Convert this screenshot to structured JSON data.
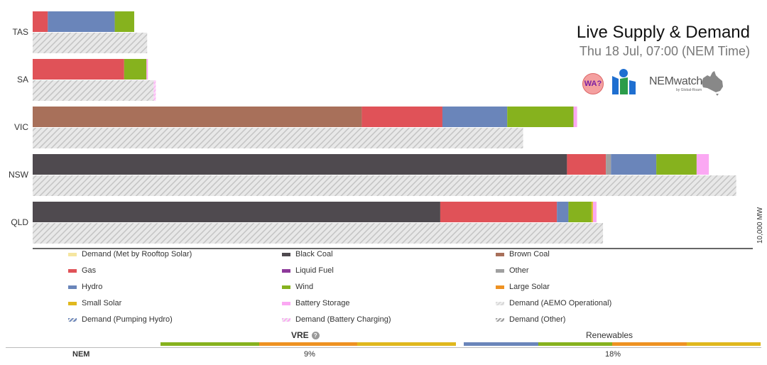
{
  "header": {
    "title": "Live Supply & Demand",
    "subtitle": "Thu 18 Jul, 07:00 (NEM Time)",
    "wa_badge": "WA?",
    "brand": "NEMwatch",
    "brand_sub": "by Global-Roam"
  },
  "colors": {
    "demand_rooftop": "#f5e6a0",
    "black_coal": "#4f4a4f",
    "brown_coal": "#a8705a",
    "gas": "#e05258",
    "liquid_fuel": "#8e3a9a",
    "other": "#a0a0a0",
    "hydro": "#6a85ba",
    "wind": "#86b21e",
    "large_solar": "#ee9222",
    "small_solar": "#e0b81e",
    "battery_storage": "#fba8f3",
    "demand_aemo": "#d8d8d8",
    "demand_pumping_hydro": "#6a85ba",
    "demand_battery_charging": "#fba8f3",
    "demand_other": "#9a9a9a"
  },
  "legend": [
    {
      "key": "demand_rooftop",
      "label": "Demand (Met by Rooftop Solar)",
      "hatched": false
    },
    {
      "key": "black_coal",
      "label": "Black Coal",
      "hatched": false
    },
    {
      "key": "brown_coal",
      "label": "Brown Coal",
      "hatched": false
    },
    {
      "key": "gas",
      "label": "Gas",
      "hatched": false
    },
    {
      "key": "liquid_fuel",
      "label": "Liquid Fuel",
      "hatched": false
    },
    {
      "key": "other",
      "label": "Other",
      "hatched": false
    },
    {
      "key": "hydro",
      "label": "Hydro",
      "hatched": false
    },
    {
      "key": "wind",
      "label": "Wind",
      "hatched": false
    },
    {
      "key": "large_solar",
      "label": "Large Solar",
      "hatched": false
    },
    {
      "key": "small_solar",
      "label": "Small Solar",
      "hatched": false
    },
    {
      "key": "battery_storage",
      "label": "Battery Storage",
      "hatched": false
    },
    {
      "key": "demand_aemo",
      "label": "Demand (AEMO Operational)",
      "hatched": true
    },
    {
      "key": "demand_pumping_hydro",
      "label": "Demand (Pumping Hydro)",
      "hatched": true
    },
    {
      "key": "demand_battery_charging",
      "label": "Demand (Battery Charging)",
      "hatched": true
    },
    {
      "key": "demand_other",
      "label": "Demand (Other)",
      "hatched": true
    }
  ],
  "chart_data": {
    "type": "bar",
    "orientation": "horizontal-stacked",
    "categories": [
      "TAS",
      "SA",
      "VIC",
      "NSW",
      "QLD"
    ],
    "scale_label": "10,000 MW",
    "x_max_mw": 10000,
    "supply": [
      {
        "region": "TAS",
        "stack": [
          {
            "key": "gas",
            "value": 210
          },
          {
            "key": "hydro",
            "value": 930
          },
          {
            "key": "wind",
            "value": 270
          }
        ]
      },
      {
        "region": "SA",
        "stack": [
          {
            "key": "gas",
            "value": 1270
          },
          {
            "key": "wind",
            "value": 310
          },
          {
            "key": "battery_storage",
            "value": 20
          }
        ]
      },
      {
        "region": "VIC",
        "stack": [
          {
            "key": "brown_coal",
            "value": 4570
          },
          {
            "key": "gas",
            "value": 1120
          },
          {
            "key": "hydro",
            "value": 900
          },
          {
            "key": "wind",
            "value": 920
          },
          {
            "key": "battery_storage",
            "value": 50
          }
        ]
      },
      {
        "region": "NSW",
        "stack": [
          {
            "key": "black_coal",
            "value": 7420
          },
          {
            "key": "gas",
            "value": 540
          },
          {
            "key": "other",
            "value": 70
          },
          {
            "key": "hydro",
            "value": 630
          },
          {
            "key": "wind",
            "value": 560
          },
          {
            "key": "battery_storage",
            "value": 170
          }
        ]
      },
      {
        "region": "QLD",
        "stack": [
          {
            "key": "black_coal",
            "value": 5660
          },
          {
            "key": "gas",
            "value": 1620
          },
          {
            "key": "hydro",
            "value": 160
          },
          {
            "key": "wind",
            "value": 320
          },
          {
            "key": "small_solar",
            "value": 20
          },
          {
            "key": "battery_storage",
            "value": 50
          }
        ]
      }
    ],
    "demand": [
      {
        "region": "TAS",
        "aemo_operational": 1590,
        "battery_charging": 0
      },
      {
        "region": "SA",
        "aemo_operational": 1680,
        "battery_charging": 30
      },
      {
        "region": "VIC",
        "aemo_operational": 6810,
        "battery_charging": 0
      },
      {
        "region": "NSW",
        "aemo_operational": 9770,
        "battery_charging": 0
      },
      {
        "region": "QLD",
        "aemo_operational": 7920,
        "battery_charging": 0
      }
    ]
  },
  "summary": {
    "region_label": "NEM",
    "vre_label": "VRE",
    "vre_value": "9%",
    "renewables_label": "Renewables",
    "renewables_value": "18%",
    "vre_strip": [
      "wind",
      "large_solar",
      "small_solar"
    ],
    "renewables_strip": [
      "hydro",
      "wind",
      "large_solar",
      "small_solar"
    ]
  }
}
